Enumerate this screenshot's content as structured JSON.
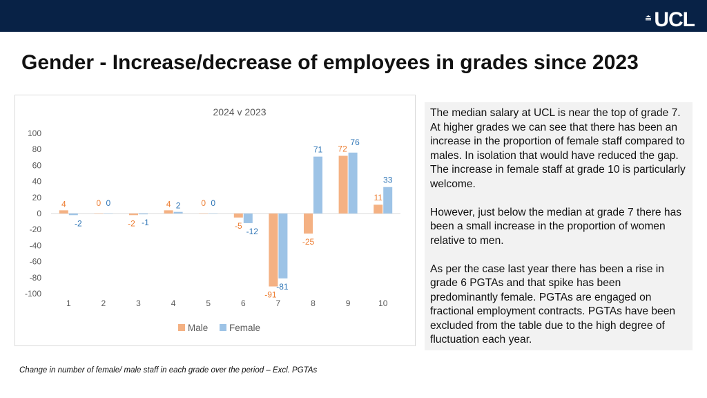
{
  "header": {
    "logo_text": "UCL",
    "bar_color": "#082246"
  },
  "slide": {
    "title": "Gender - Increase/decrease of employees in grades since 2023",
    "caption": "Change in number of female/ male staff in each grade over the period – Excl. PGTAs"
  },
  "notes": {
    "paragraphs": [
      "The median salary at UCL is near the top of grade 7. At higher grades we can see that there has been an increase in the proportion of female staff compared to males. In isolation that would have reduced the gap. The increase in female staff at grade 10 is particularly welcome.",
      "However, just below the median at grade 7 there has been a small increase in the proportion of women relative to men.",
      "As per the case last year there has been a rise in grade 6 PGTAs and that spike has been predominantly female.  PGTAs are engaged on fractional employment contracts. PGTAs have been excluded from the table due to the high degree of fluctuation each year."
    ]
  },
  "chart_data": {
    "type": "bar",
    "title": "2024 v 2023",
    "categories": [
      "1",
      "2",
      "3",
      "4",
      "5",
      "6",
      "7",
      "8",
      "9",
      "10"
    ],
    "series": [
      {
        "name": "Male",
        "color": "#f4b183",
        "label_color": "#ed7d31",
        "values": [
          4,
          0,
          -2,
          4,
          0,
          -5,
          -91,
          -25,
          72,
          11
        ],
        "labels": [
          "4",
          "0",
          "-2",
          "4",
          "0",
          "-5",
          "-91",
          "-25",
          "72",
          "11"
        ]
      },
      {
        "name": "Female",
        "color": "#9dc3e6",
        "label_color": "#2e75b6",
        "values": [
          -2,
          0,
          -1,
          2,
          0,
          -12,
          -81,
          71,
          76,
          33
        ],
        "labels": [
          "-2",
          "0",
          "-1",
          "2",
          "0",
          "-12",
          "-81",
          "71",
          "76",
          "33"
        ]
      }
    ],
    "ylim": [
      -100,
      100
    ],
    "yticks": [
      100,
      80,
      60,
      40,
      20,
      0,
      -20,
      -40,
      -60,
      -80,
      -100
    ],
    "grid": false,
    "legend_position": "bottom-center",
    "xlabel": "",
    "ylabel": ""
  }
}
